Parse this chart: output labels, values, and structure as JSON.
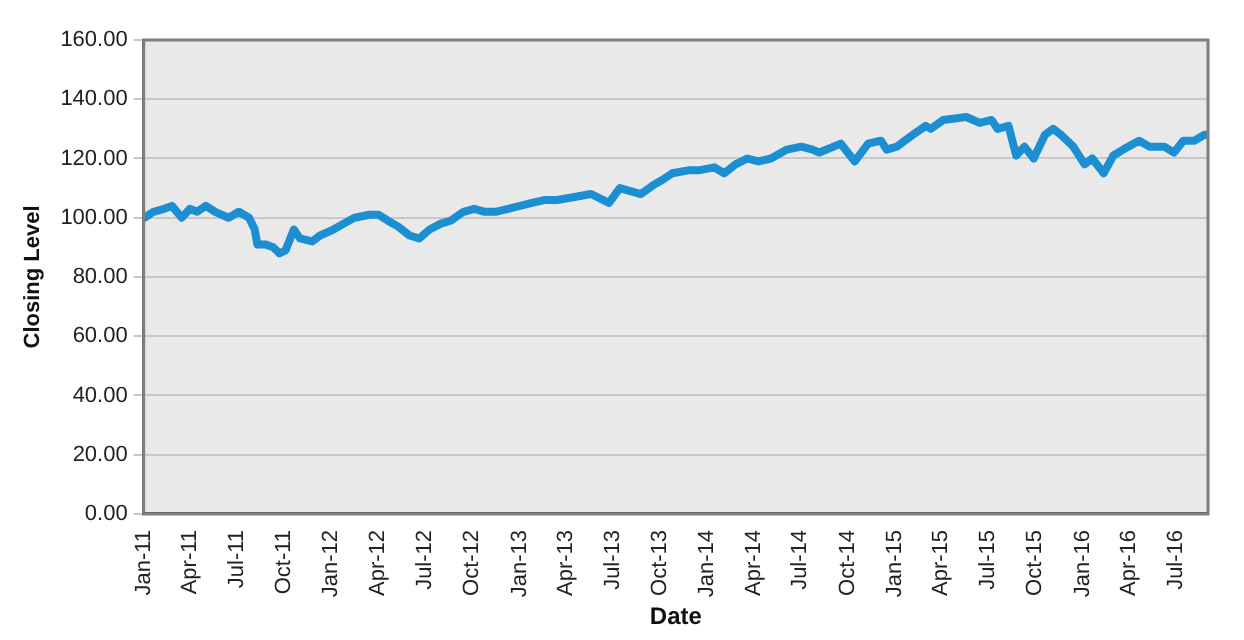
{
  "chart_data": {
    "type": "line",
    "xlabel": "Date",
    "ylabel": "Closing Level",
    "x": [
      "2011-01-03",
      "2011-01-20",
      "2011-02-10",
      "2011-02-25",
      "2011-03-16",
      "2011-04-01",
      "2011-04-15",
      "2011-05-02",
      "2011-05-20",
      "2011-06-15",
      "2011-07-05",
      "2011-07-25",
      "2011-08-05",
      "2011-08-10",
      "2011-08-25",
      "2011-09-10",
      "2011-09-22",
      "2011-10-04",
      "2011-10-20",
      "2011-11-01",
      "2011-11-25",
      "2011-12-10",
      "2012-01-05",
      "2012-01-25",
      "2012-02-15",
      "2012-03-15",
      "2012-04-02",
      "2012-04-20",
      "2012-05-10",
      "2012-06-01",
      "2012-06-20",
      "2012-07-10",
      "2012-08-01",
      "2012-08-20",
      "2012-09-14",
      "2012-10-05",
      "2012-10-25",
      "2012-11-15",
      "2012-12-10",
      "2013-01-02",
      "2013-01-25",
      "2013-02-20",
      "2013-03-15",
      "2013-04-18",
      "2013-05-20",
      "2013-06-24",
      "2013-07-15",
      "2013-08-25",
      "2013-09-18",
      "2013-10-08",
      "2013-10-25",
      "2013-11-25",
      "2013-12-15",
      "2014-01-15",
      "2014-02-03",
      "2014-02-25",
      "2014-03-20",
      "2014-04-10",
      "2014-05-05",
      "2014-06-05",
      "2014-07-03",
      "2014-07-25",
      "2014-08-07",
      "2014-09-18",
      "2014-10-15",
      "2014-11-10",
      "2014-12-05",
      "2014-12-16",
      "2015-01-05",
      "2015-01-20",
      "2015-02-05",
      "2015-03-02",
      "2015-03-12",
      "2015-04-05",
      "2015-05-20",
      "2015-06-15",
      "2015-07-08",
      "2015-07-20",
      "2015-08-10",
      "2015-08-25",
      "2015-09-10",
      "2015-09-28",
      "2015-10-20",
      "2015-11-05",
      "2015-11-20",
      "2015-12-02",
      "2015-12-14",
      "2016-01-05",
      "2016-01-20",
      "2016-02-11",
      "2016-03-01",
      "2016-03-20",
      "2016-04-20",
      "2016-05-10",
      "2016-05-25",
      "2016-06-08",
      "2016-06-27",
      "2016-07-15",
      "2016-08-05",
      "2016-08-25",
      "2016-09-01"
    ],
    "values": [
      100,
      102,
      103,
      104,
      100,
      103,
      102,
      104,
      102,
      100,
      102,
      100,
      96,
      91,
      91,
      90,
      88,
      89,
      96,
      93,
      92,
      94,
      96,
      98,
      100,
      101,
      101,
      99,
      97,
      94,
      93,
      96,
      98,
      99,
      102,
      103,
      102,
      102,
      103,
      104,
      105,
      106,
      106,
      107,
      108,
      105,
      110,
      108,
      111,
      113,
      115,
      116,
      116,
      117,
      115,
      118,
      120,
      119,
      120,
      123,
      124,
      123,
      122,
      125,
      119,
      125,
      126,
      123,
      124,
      126,
      128,
      131,
      130,
      133,
      134,
      132,
      133,
      130,
      131,
      121,
      124,
      120,
      128,
      130,
      128,
      126,
      124,
      118,
      120,
      115,
      121,
      123,
      126,
      124,
      124,
      124,
      122,
      126,
      126,
      128,
      128
    ],
    "color": "#1b8fd2",
    "xlim": [
      "2011-01-01",
      "2016-09-01"
    ],
    "xticks": [
      {
        "value": "2011-01-01",
        "label": "Jan-11"
      },
      {
        "value": "2011-04-01",
        "label": "Apr-11"
      },
      {
        "value": "2011-07-01",
        "label": "Jul-11"
      },
      {
        "value": "2011-10-01",
        "label": "Oct-11"
      },
      {
        "value": "2012-01-01",
        "label": "Jan-12"
      },
      {
        "value": "2012-04-01",
        "label": "Apr-12"
      },
      {
        "value": "2012-07-01",
        "label": "Jul-12"
      },
      {
        "value": "2012-10-01",
        "label": "Oct-12"
      },
      {
        "value": "2013-01-01",
        "label": "Jan-13"
      },
      {
        "value": "2013-04-01",
        "label": "Apr-13"
      },
      {
        "value": "2013-07-01",
        "label": "Jul-13"
      },
      {
        "value": "2013-10-01",
        "label": "Oct-13"
      },
      {
        "value": "2014-01-01",
        "label": "Jan-14"
      },
      {
        "value": "2014-04-01",
        "label": "Apr-14"
      },
      {
        "value": "2014-07-01",
        "label": "Jul-14"
      },
      {
        "value": "2014-10-01",
        "label": "Oct-14"
      },
      {
        "value": "2015-01-01",
        "label": "Jan-15"
      },
      {
        "value": "2015-04-01",
        "label": "Apr-15"
      },
      {
        "value": "2015-07-01",
        "label": "Jul-15"
      },
      {
        "value": "2015-10-01",
        "label": "Oct-15"
      },
      {
        "value": "2016-01-01",
        "label": "Jan-16"
      },
      {
        "value": "2016-04-01",
        "label": "Apr-16"
      },
      {
        "value": "2016-07-01",
        "label": "Jul-16"
      }
    ],
    "ylim": [
      0,
      160
    ],
    "yticks": [
      {
        "value": 0,
        "label": "0.00"
      },
      {
        "value": 20,
        "label": "20.00"
      },
      {
        "value": 40,
        "label": "40.00"
      },
      {
        "value": 60,
        "label": "60.00"
      },
      {
        "value": 80,
        "label": "80.00"
      },
      {
        "value": 100,
        "label": "100.00"
      },
      {
        "value": 120,
        "label": "120.00"
      },
      {
        "value": 140,
        "label": "140.00"
      },
      {
        "value": 160,
        "label": "160.00"
      }
    ],
    "grid": "y",
    "legend": false,
    "marker": "none",
    "line_style": "solid"
  }
}
